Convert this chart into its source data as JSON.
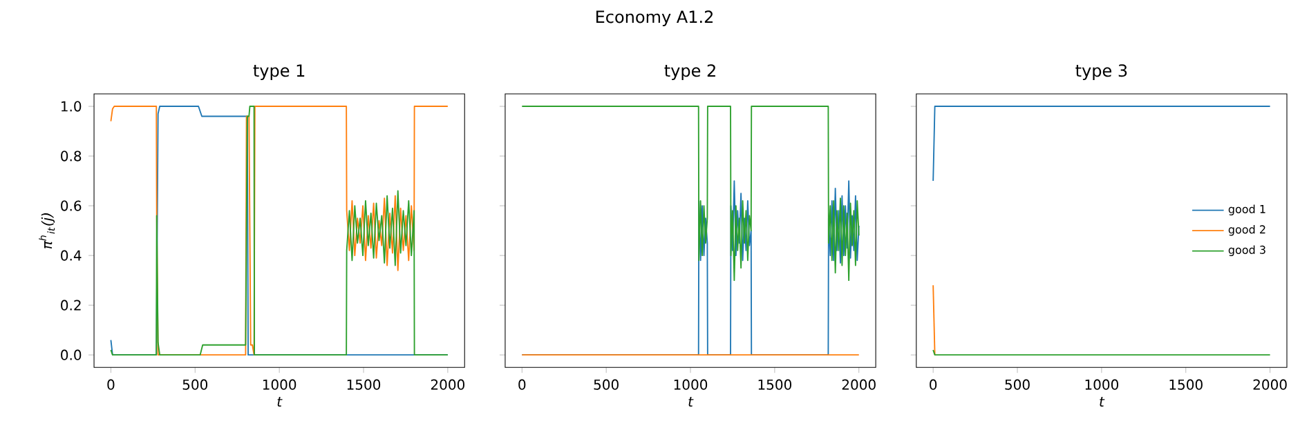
{
  "chart_data": [
    {
      "type": "line",
      "title": "type 1",
      "xlabel": "t",
      "ylabel": "π$^{h}$$_{it}$(j)",
      "annotations": [
        "Economy A1.2"
      ],
      "xlim": [
        -100,
        2100
      ],
      "xticks": [
        0,
        500,
        1000,
        1500,
        2000
      ],
      "ylim": [
        -0.05,
        1.05
      ],
      "yticks": [
        {
          "value": 0,
          "label": "0.0"
        },
        0.2,
        0.4,
        0.6,
        0.8,
        {
          "value": 1,
          "label": "1.0"
        }
      ],
      "series": [
        {
          "color": "#1f77b4",
          "x": [
            0,
            10,
            270,
            280,
            290,
            520,
            540,
            810,
            815,
            2000
          ],
          "values": [
            0.06,
            0,
            0,
            0.97,
            1.0,
            1.0,
            0.96,
            0.96,
            0,
            0
          ]
        },
        {
          "color": "#ff7f0e",
          "x": [
            0,
            10,
            20,
            270,
            272,
            280,
            800,
            805,
            820,
            830,
            840,
            850,
            855,
            1398,
            1400,
            1416,
            1432,
            1448,
            1464,
            1480,
            1496,
            1512,
            1528,
            1544,
            1560,
            1576,
            1592,
            1608,
            1624,
            1640,
            1656,
            1672,
            1688,
            1704,
            1720,
            1736,
            1752,
            1768,
            1784,
            1800,
            1802,
            2000
          ],
          "values": [
            0.94,
            0.99,
            1.0,
            1.0,
            0.57,
            0,
            0,
            0.96,
            0.96,
            0.04,
            0.04,
            0,
            1.0,
            1.0,
            0.58,
            0.42,
            0.62,
            0.4,
            0.55,
            0.45,
            0.6,
            0.38,
            0.56,
            0.43,
            0.61,
            0.39,
            0.54,
            0.44,
            0.63,
            0.36,
            0.57,
            0.41,
            0.64,
            0.34,
            0.59,
            0.42,
            0.56,
            0.38,
            0.6,
            0.42,
            1.0,
            1.0
          ]
        },
        {
          "color": "#2ca02c",
          "x": [
            0,
            10,
            270,
            272,
            280,
            290,
            530,
            545,
            800,
            810,
            820,
            825,
            850,
            852,
            1398,
            1400,
            1416,
            1432,
            1448,
            1464,
            1480,
            1496,
            1512,
            1528,
            1544,
            1560,
            1576,
            1592,
            1608,
            1624,
            1640,
            1656,
            1672,
            1688,
            1704,
            1720,
            1736,
            1752,
            1768,
            1784,
            1800,
            1802,
            2000
          ],
          "values": [
            0.02,
            0,
            0,
            0.56,
            0.05,
            0,
            0,
            0.04,
            0.04,
            0.96,
            0.96,
            1.0,
            1.0,
            0,
            0,
            0.42,
            0.58,
            0.38,
            0.6,
            0.45,
            0.55,
            0.4,
            0.62,
            0.44,
            0.57,
            0.39,
            0.61,
            0.46,
            0.56,
            0.37,
            0.64,
            0.43,
            0.59,
            0.36,
            0.66,
            0.41,
            0.58,
            0.44,
            0.62,
            0.4,
            0.58,
            0,
            0
          ]
        }
      ]
    },
    {
      "type": "line",
      "title": "type 2",
      "xlabel": "t",
      "tick_labels": "x",
      "xlim": [
        -100,
        2100
      ],
      "xticks": [
        0,
        500,
        1000,
        1500,
        2000
      ],
      "ylim": [
        -0.05,
        1.05
      ],
      "yticks": [
        {
          "value": 0,
          "label": null
        },
        {
          "value": 0.2,
          "label": null
        },
        {
          "value": 0.4,
          "label": null
        },
        {
          "value": 0.6,
          "label": null
        },
        {
          "value": 0.8,
          "label": null
        },
        {
          "value": 1,
          "label": null
        }
      ],
      "series": [
        {
          "color": "#1f77b4",
          "x": [
            0,
            1048,
            1050,
            1060,
            1070,
            1080,
            1090,
            1100,
            1102,
            1238,
            1240,
            1250,
            1260,
            1270,
            1280,
            1290,
            1300,
            1310,
            1320,
            1330,
            1340,
            1350,
            1360,
            1362,
            1818,
            1820,
            1830,
            1840,
            1850,
            1860,
            1870,
            1880,
            1890,
            1900,
            1910,
            1920,
            1930,
            1940,
            1950,
            1960,
            1970,
            1980,
            1990,
            2000
          ],
          "values": [
            0,
            0,
            0.62,
            0.38,
            0.6,
            0.4,
            0.55,
            0.45,
            0,
            0,
            0.6,
            0.42,
            0.7,
            0.4,
            0.58,
            0.45,
            0.65,
            0.38,
            0.55,
            0.42,
            0.62,
            0.44,
            0.5,
            0,
            0,
            0.55,
            0.4,
            0.62,
            0.38,
            0.67,
            0.42,
            0.58,
            0.37,
            0.64,
            0.4,
            0.6,
            0.43,
            0.7,
            0.39,
            0.56,
            0.42,
            0.64,
            0.38,
            0.52
          ]
        },
        {
          "color": "#ff7f0e",
          "x": [
            0,
            2000
          ],
          "values": [
            0,
            0
          ]
        },
        {
          "color": "#2ca02c",
          "x": [
            0,
            1048,
            1050,
            1060,
            1070,
            1080,
            1090,
            1100,
            1102,
            1238,
            1240,
            1250,
            1260,
            1270,
            1280,
            1290,
            1300,
            1310,
            1320,
            1330,
            1340,
            1350,
            1360,
            1362,
            1818,
            1820,
            1830,
            1840,
            1850,
            1860,
            1870,
            1880,
            1890,
            1900,
            1910,
            1920,
            1930,
            1940,
            1950,
            1960,
            1970,
            1980,
            1990,
            2000
          ],
          "values": [
            1,
            1,
            0.38,
            0.62,
            0.4,
            0.6,
            0.45,
            0.55,
            1,
            1,
            0.4,
            0.58,
            0.3,
            0.6,
            0.42,
            0.55,
            0.35,
            0.62,
            0.45,
            0.58,
            0.38,
            0.56,
            0.5,
            1,
            1,
            0.45,
            0.6,
            0.38,
            0.62,
            0.33,
            0.58,
            0.42,
            0.63,
            0.36,
            0.6,
            0.4,
            0.57,
            0.3,
            0.61,
            0.44,
            0.58,
            0.36,
            0.62,
            0.48
          ]
        }
      ]
    },
    {
      "type": "line",
      "title": "type 3",
      "xlabel": "t",
      "tick_labels": "x",
      "legend": "right",
      "xlim": [
        -100,
        2100
      ],
      "xticks": [
        0,
        500,
        1000,
        1500,
        2000
      ],
      "ylim": [
        -0.05,
        1.05
      ],
      "yticks": [
        {
          "value": 0,
          "label": null
        },
        {
          "value": 0.2,
          "label": null
        },
        {
          "value": 0.4,
          "label": null
        },
        {
          "value": 0.6,
          "label": null
        },
        {
          "value": 0.8,
          "label": null
        },
        {
          "value": 1,
          "label": null
        }
      ],
      "series": [
        {
          "name": "good 1",
          "color": "#1f77b4",
          "x": [
            0,
            10,
            2000
          ],
          "values": [
            0.7,
            1.0,
            1.0
          ]
        },
        {
          "name": "good 2",
          "color": "#ff7f0e",
          "x": [
            0,
            10
          ],
          "values": [
            0.28,
            0
          ]
        },
        {
          "name": "good 3",
          "color": "#2ca02c",
          "x": [
            0,
            10,
            2000
          ],
          "values": [
            0.02,
            0,
            0
          ]
        }
      ]
    }
  ]
}
